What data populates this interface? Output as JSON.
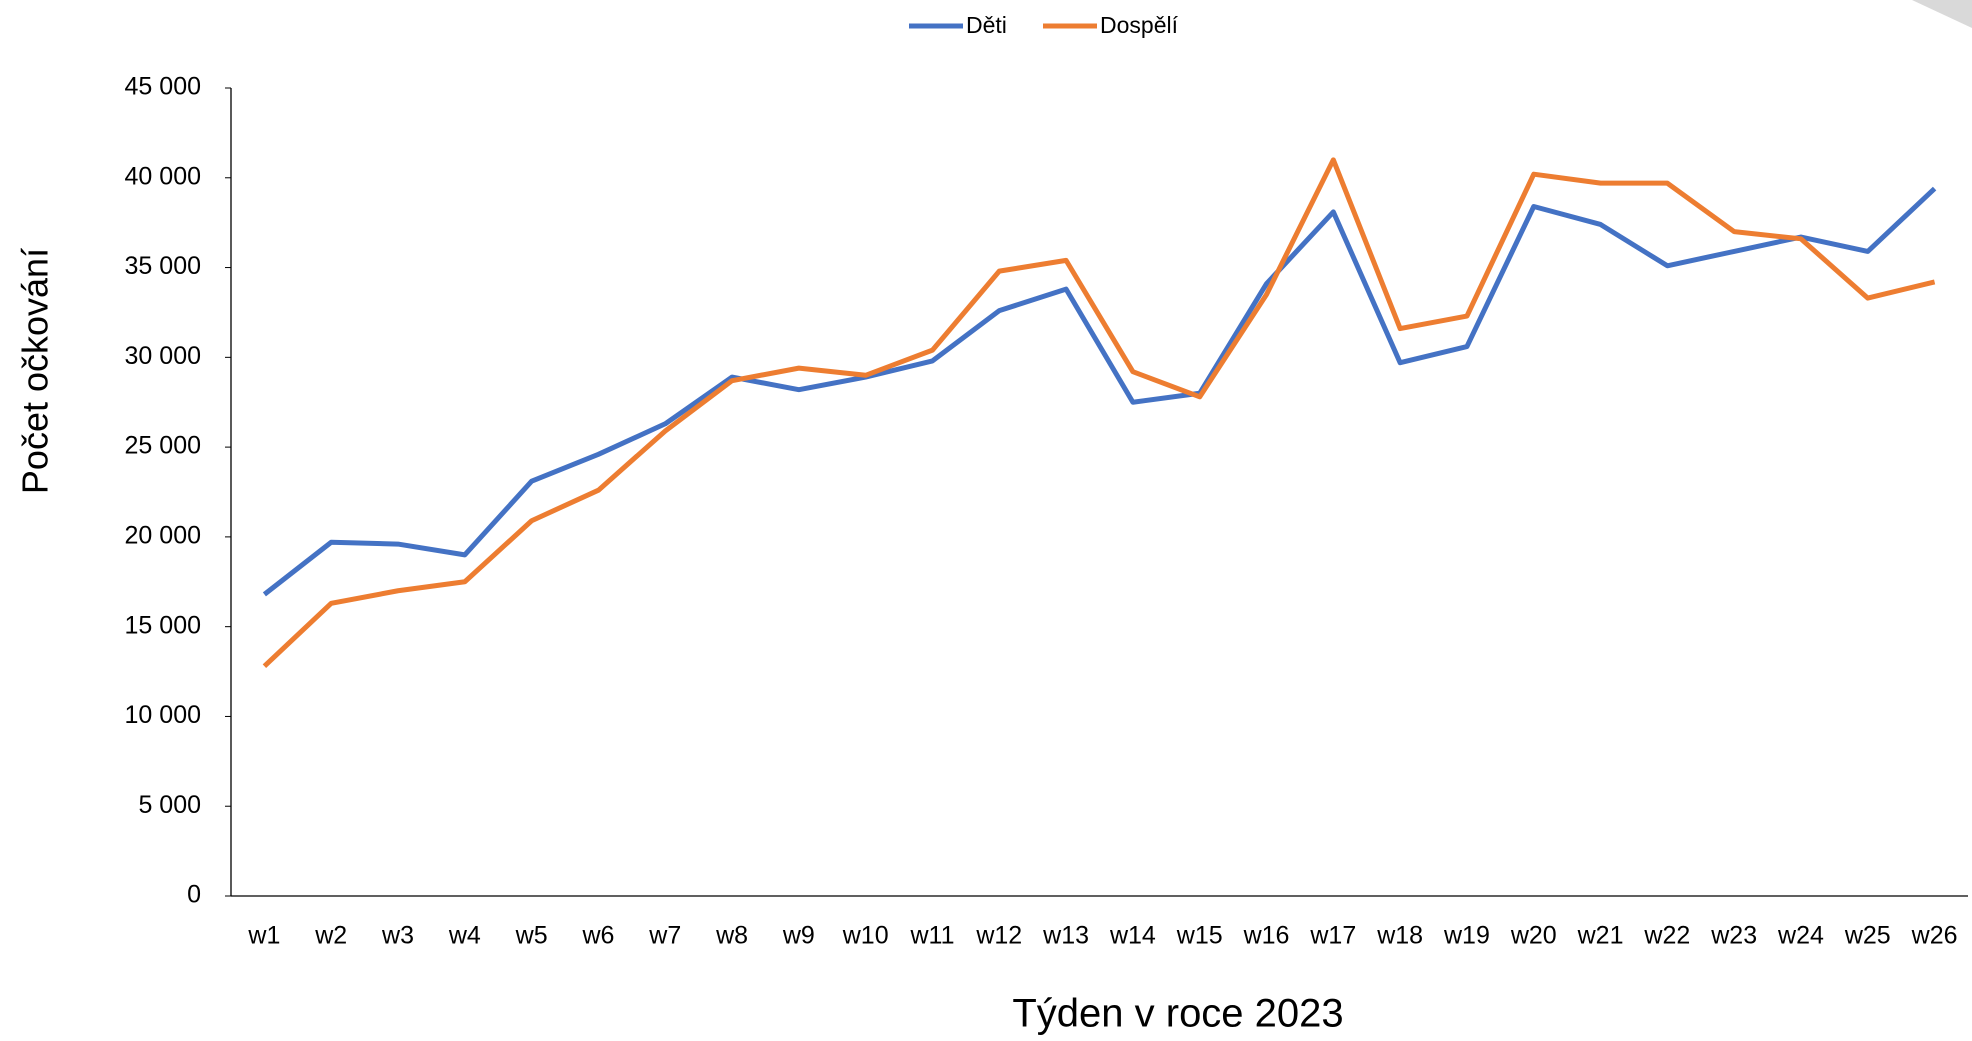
{
  "chart_data": {
    "type": "line",
    "x_label": "Týden v roce 2023",
    "y_label": "Počet očkování",
    "categories": [
      "w1",
      "w2",
      "w3",
      "w4",
      "w5",
      "w6",
      "w7",
      "w8",
      "w9",
      "w10",
      "w11",
      "w12",
      "w13",
      "w14",
      "w15",
      "w16",
      "w17",
      "w18",
      "w19",
      "w20",
      "w21",
      "w22",
      "w23",
      "w24",
      "w25",
      "w26"
    ],
    "series": [
      {
        "name": "Děti",
        "color": "#4472c4",
        "values": [
          16800,
          19700,
          19600,
          19000,
          23100,
          24600,
          26300,
          28900,
          28200,
          28900,
          29800,
          32600,
          33800,
          27500,
          28000,
          34100,
          38100,
          29700,
          30600,
          38400,
          37400,
          35100,
          35900,
          36700,
          35900,
          39400
        ]
      },
      {
        "name": "Dospělí",
        "color": "#ed7d31",
        "values": [
          12800,
          16300,
          17000,
          17500,
          20900,
          22600,
          25900,
          28700,
          29400,
          29000,
          30400,
          34800,
          35400,
          29200,
          27800,
          33500,
          41000,
          31600,
          32300,
          40200,
          39700,
          39700,
          37000,
          36600,
          33300,
          34200
        ]
      }
    ],
    "ylim": [
      0,
      45000
    ],
    "yticks": [
      {
        "value": 0,
        "label": "0"
      },
      {
        "value": 5000,
        "label": "5 000"
      },
      {
        "value": 10000,
        "label": "10 000"
      },
      {
        "value": 15000,
        "label": "15 000"
      },
      {
        "value": 20000,
        "label": "20 000"
      },
      {
        "value": 25000,
        "label": "25 000"
      },
      {
        "value": 30000,
        "label": "30 000"
      },
      {
        "value": 35000,
        "label": "35 000"
      },
      {
        "value": 40000,
        "label": "40 000"
      },
      {
        "value": 45000,
        "label": "45 000"
      }
    ],
    "legend": "top",
    "grid": false
  }
}
